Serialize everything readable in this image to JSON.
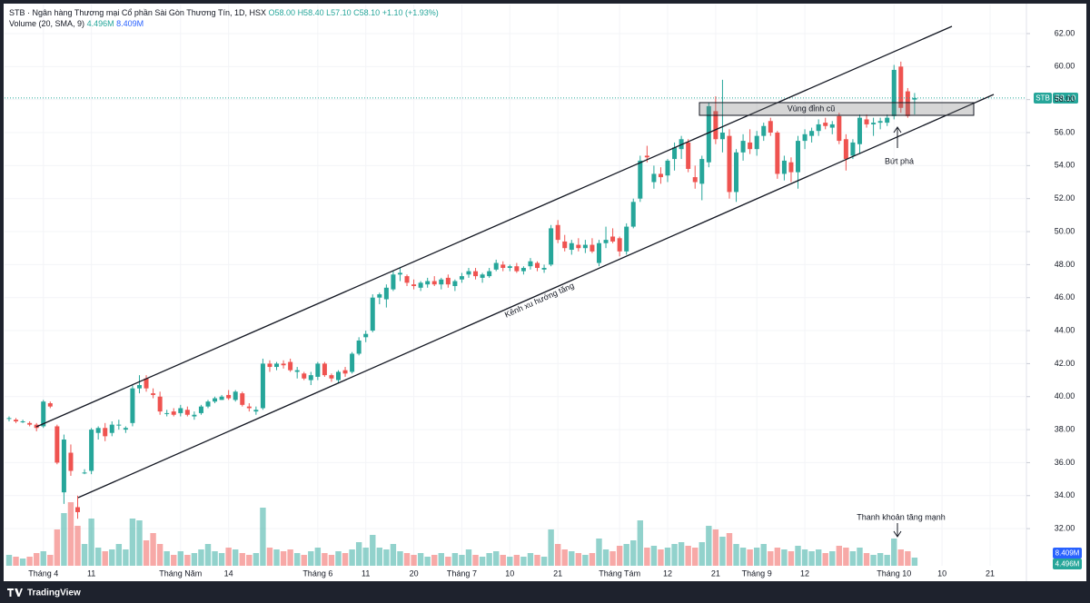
{
  "chart_data": {
    "type": "candlestick",
    "header": {
      "symbol": "STB · Ngân hàng Thương mại Cổ phần Sài Gòn Thương Tín, 1D, HSX",
      "ohlc": [
        "O58.00",
        "H58.40",
        "L57.10",
        "C58.10",
        "+1.10 (+1.93%)"
      ],
      "volume_title": "Volume (20, SMA, 9)",
      "volume_values": [
        "4.496M",
        "8.409M"
      ]
    },
    "up_color": "#26a69a",
    "down_color": "#ef5350",
    "open": [
      38.7,
      38.6,
      38.5,
      38.4,
      38.3,
      38.2,
      39.6,
      38.2,
      34.2,
      36.6,
      33.3,
      35.4,
      35.5,
      37.8,
      38.1,
      37.8,
      38.3,
      38.0,
      38.4,
      40.5,
      41.1,
      40.2,
      40.0,
      39.0,
      39.1,
      39.0,
      39.2,
      38.8,
      39.0,
      39.4,
      39.7,
      39.8,
      40.1,
      39.8,
      40.2,
      39.4,
      39.1,
      39.3,
      42.0,
      41.8,
      42.0,
      42.1,
      41.5,
      41.4,
      41.0,
      41.2,
      42.0,
      41.3,
      41.0,
      41.6,
      41.5,
      42.6,
      43.6,
      44.0,
      46.0,
      45.9,
      46.5,
      47.4,
      47.3,
      46.8,
      46.6,
      46.8,
      47.0,
      46.8,
      47.2,
      46.7,
      47.1,
      47.4,
      47.6,
      47.2,
      47.3,
      47.7,
      48.0,
      47.8,
      47.9,
      47.6,
      47.9,
      48.1,
      47.7,
      48.0,
      50.4,
      49.4,
      48.9,
      49.2,
      49.0,
      49.2,
      48.1,
      49.3,
      49.7,
      49.6,
      48.8,
      50.3,
      52.0,
      54.6,
      53.0,
      53.5,
      53.4,
      54.4,
      55.0,
      55.4,
      53.3,
      52.9,
      54.2,
      57.3,
      55.6,
      55.8,
      52.4,
      54.8,
      55.4,
      55.0,
      55.8,
      56.7,
      56.0,
      53.5,
      54.2,
      53.6,
      55.5,
      55.8,
      56.1,
      56.6,
      56.3,
      57.0,
      55.6,
      54.6,
      55.3,
      56.8,
      56.5,
      56.6,
      56.6,
      57.0,
      60.0,
      58.5,
      58.0
    ],
    "high": [
      38.8,
      38.7,
      38.6,
      38.5,
      38.4,
      39.8,
      39.7,
      38.3,
      37.7,
      37.1,
      34.0,
      35.6,
      38.1,
      38.2,
      38.4,
      38.5,
      38.6,
      38.2,
      40.7,
      41.3,
      41.3,
      40.5,
      40.3,
      39.2,
      39.3,
      39.5,
      39.4,
      39.1,
      39.5,
      39.8,
      40.0,
      40.1,
      40.4,
      40.4,
      40.3,
      39.6,
      39.4,
      42.3,
      42.2,
      42.1,
      42.2,
      42.3,
      41.8,
      41.5,
      41.5,
      42.1,
      42.1,
      41.4,
      41.6,
      41.8,
      42.7,
      43.6,
      44.0,
      46.2,
      46.3,
      46.8,
      47.6,
      47.8,
      47.4,
      47.1,
      47.0,
      47.2,
      47.3,
      47.2,
      47.4,
      47.1,
      47.5,
      47.8,
      47.8,
      47.5,
      47.8,
      48.3,
      48.2,
      48.0,
      48.1,
      47.9,
      48.4,
      48.2,
      48.0,
      50.4,
      50.7,
      49.8,
      49.5,
      49.6,
      49.5,
      49.6,
      49.5,
      50.3,
      50.2,
      49.7,
      50.5,
      52.0,
      54.6,
      55.2,
      54.0,
      53.9,
      54.4,
      55.4,
      55.8,
      55.6,
      54.0,
      54.6,
      57.8,
      58.2,
      59.2,
      56.2,
      55.0,
      55.9,
      56.2,
      56.1,
      56.6,
      56.9,
      56.1,
      54.6,
      54.5,
      55.8,
      56.2,
      56.3,
      56.8,
      56.9,
      56.7,
      57.2,
      55.9,
      55.6,
      57.1,
      57.1,
      56.9,
      56.9,
      57.1,
      60.1,
      60.3,
      58.7,
      58.4
    ],
    "low": [
      38.5,
      38.4,
      38.4,
      38.2,
      37.9,
      38.1,
      39.3,
      35.9,
      33.5,
      35.2,
      32.6,
      35.3,
      35.3,
      37.4,
      37.3,
      37.6,
      38.0,
      37.8,
      38.2,
      40.2,
      40.3,
      39.9,
      38.9,
      38.8,
      38.8,
      38.8,
      38.8,
      38.6,
      38.9,
      39.3,
      39.6,
      39.8,
      39.8,
      39.7,
      39.4,
      39.1,
      38.9,
      39.2,
      41.5,
      41.6,
      41.7,
      41.5,
      41.1,
      41.0,
      40.7,
      41.0,
      41.2,
      40.9,
      40.8,
      41.2,
      41.4,
      42.5,
      43.3,
      43.9,
      45.6,
      45.4,
      46.4,
      47.0,
      46.7,
      46.5,
      46.4,
      46.6,
      46.7,
      46.5,
      46.6,
      46.4,
      46.9,
      47.2,
      47.1,
      46.9,
      47.2,
      47.6,
      47.6,
      47.6,
      47.5,
      47.4,
      47.7,
      47.6,
      47.5,
      47.9,
      49.3,
      48.8,
      48.6,
      48.8,
      48.7,
      48.7,
      47.9,
      49.0,
      49.3,
      48.5,
      48.6,
      50.2,
      51.8,
      54.2,
      52.6,
      52.9,
      53.0,
      53.7,
      54.4,
      53.6,
      52.6,
      51.9,
      53.9,
      55.3,
      54.8,
      52.0,
      51.8,
      54.3,
      54.7,
      54.6,
      55.5,
      55.8,
      53.2,
      53.1,
      53.0,
      52.6,
      55.0,
      55.4,
      55.8,
      56.2,
      55.9,
      55.3,
      53.7,
      54.4,
      54.7,
      56.3,
      55.8,
      56.2,
      56.4,
      56.8,
      57.2,
      56.9,
      57.1
    ],
    "close": [
      38.7,
      38.5,
      38.5,
      38.3,
      38.1,
      39.7,
      39.4,
      36.0,
      37.4,
      35.5,
      33.0,
      35.4,
      38.0,
      38.1,
      37.6,
      38.3,
      38.3,
      38.1,
      40.5,
      40.7,
      40.5,
      40.1,
      39.1,
      39.0,
      38.9,
      39.3,
      38.9,
      38.9,
      39.4,
      39.7,
      39.9,
      40.0,
      39.9,
      40.3,
      39.5,
      39.3,
      39.2,
      42.0,
      41.8,
      42.0,
      41.9,
      41.6,
      41.6,
      41.1,
      41.3,
      42.0,
      41.3,
      41.1,
      41.5,
      41.4,
      42.6,
      43.4,
      43.8,
      46.0,
      46.2,
      46.6,
      47.4,
      47.5,
      46.9,
      46.7,
      46.9,
      47.0,
      46.8,
      47.1,
      46.8,
      47.0,
      47.3,
      47.6,
      47.3,
      47.4,
      47.6,
      48.1,
      47.8,
      47.9,
      47.6,
      47.8,
      48.2,
      47.8,
      47.8,
      50.2,
      49.5,
      49.0,
      49.3,
      49.0,
      49.2,
      48.8,
      49.3,
      49.5,
      49.4,
      48.8,
      50.3,
      51.8,
      54.3,
      54.5,
      53.5,
      53.3,
      54.3,
      55.1,
      55.6,
      53.8,
      53.0,
      54.4,
      57.6,
      55.6,
      56.0,
      52.4,
      54.8,
      55.5,
      55.0,
      55.8,
      56.4,
      56.0,
      53.5,
      54.3,
      53.6,
      55.5,
      55.9,
      56.1,
      56.5,
      56.4,
      56.5,
      55.5,
      54.4,
      55.4,
      56.9,
      56.5,
      56.6,
      56.7,
      56.9,
      59.8,
      57.5,
      57.0,
      58.1
    ],
    "volume": [
      6,
      5,
      4,
      5,
      7,
      8,
      6,
      20,
      29,
      35,
      22,
      12,
      26,
      10,
      8,
      9,
      12,
      9,
      26,
      25,
      14,
      18,
      12,
      8,
      6,
      8,
      6,
      7,
      9,
      12,
      8,
      7,
      10,
      9,
      7,
      6,
      7,
      32,
      10,
      9,
      8,
      9,
      7,
      6,
      8,
      10,
      7,
      6,
      8,
      7,
      9,
      13,
      10,
      17,
      10,
      9,
      12,
      8,
      7,
      6,
      7,
      5,
      6,
      7,
      5,
      7,
      6,
      9,
      6,
      5,
      7,
      8,
      6,
      5,
      6,
      5,
      7,
      6,
      5,
      20,
      12,
      9,
      8,
      7,
      6,
      7,
      15,
      9,
      8,
      11,
      12,
      14,
      25,
      10,
      11,
      9,
      10,
      12,
      13,
      11,
      10,
      13,
      22,
      20,
      16,
      18,
      12,
      10,
      9,
      10,
      12,
      8,
      10,
      9,
      8,
      11,
      9,
      8,
      9,
      7,
      8,
      11,
      10,
      8,
      10,
      7,
      6,
      7,
      6,
      15,
      9,
      8,
      4.496
    ],
    "xlim": [
      -0.66,
      148.3
    ],
    "ylim": [
      29.75,
      63.76
    ],
    "volume_ylim": [
      0,
      40
    ],
    "yticks": [
      {
        "value": 32,
        "label": "32.00"
      },
      {
        "value": 34,
        "label": "34.00"
      },
      {
        "value": 36,
        "label": "36.00"
      },
      {
        "value": 38,
        "label": "38.00"
      },
      {
        "value": 40,
        "label": "40.00"
      },
      {
        "value": 42,
        "label": "42.00"
      },
      {
        "value": 44,
        "label": "44.00"
      },
      {
        "value": 46,
        "label": "46.00"
      },
      {
        "value": 48,
        "label": "48.00"
      },
      {
        "value": 50,
        "label": "50.00"
      },
      {
        "value": 52,
        "label": "52.00"
      },
      {
        "value": 54,
        "label": "54.00"
      },
      {
        "value": 56,
        "label": "56.00"
      },
      {
        "value": 58,
        "label": "58.00"
      },
      {
        "value": 60,
        "label": "60.00"
      },
      {
        "value": 62,
        "label": "62.00"
      }
    ],
    "xticks": [
      {
        "value": 5,
        "label": "Tháng 4"
      },
      {
        "value": 12,
        "label": "11"
      },
      {
        "value": 25,
        "label": "Tháng Năm"
      },
      {
        "value": 32,
        "label": "14"
      },
      {
        "value": 45,
        "label": "Tháng 6"
      },
      {
        "value": 52,
        "label": "11"
      },
      {
        "value": 59,
        "label": "20"
      },
      {
        "value": 66,
        "label": "Tháng 7"
      },
      {
        "value": 73,
        "label": "10"
      },
      {
        "value": 80,
        "label": "21"
      },
      {
        "value": 89,
        "label": "Tháng Tám"
      },
      {
        "value": 96,
        "label": "12"
      },
      {
        "value": 103,
        "label": "21"
      },
      {
        "value": 109,
        "label": "Tháng 9"
      },
      {
        "value": 116,
        "label": "12"
      },
      {
        "value": 129,
        "label": "Tháng 10"
      },
      {
        "value": 136,
        "label": "10"
      },
      {
        "value": 143,
        "label": "21"
      }
    ],
    "last_price": {
      "symbol": "STB",
      "label": "58.10"
    },
    "annotations": {
      "zone": "Vùng đỉnh cũ",
      "breakout": "Bứt phá",
      "channel": "Kênh xu hướng tăng",
      "liquidity": "Thanh khoản tăng mạnh"
    },
    "footer": "TradingView"
  }
}
